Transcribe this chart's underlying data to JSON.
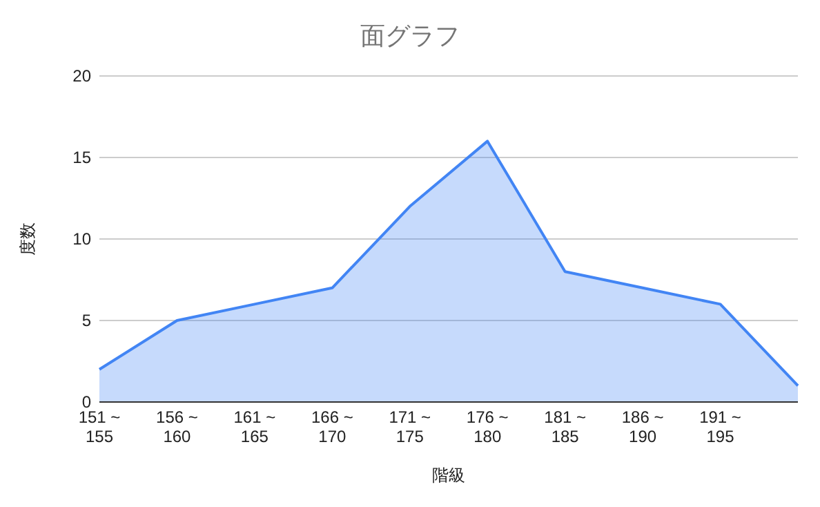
{
  "chart_data": {
    "type": "area",
    "title": "面グラフ",
    "xlabel": "階級",
    "ylabel": "度数",
    "categories": [
      "151 ~ 155",
      "156 ~ 160",
      "161 ~ 165",
      "166 ~ 170",
      "171 ~ 175",
      "176 ~ 180",
      "181 ~ 185",
      "186 ~ 190",
      "191 ~ 195",
      null
    ],
    "series": [
      {
        "color": "#4285f4",
        "values": [
          2,
          5,
          6,
          7,
          12,
          16,
          8,
          7,
          6,
          1
        ]
      }
    ],
    "ylim": [
      0,
      20
    ],
    "yticks": [
      0,
      5,
      10,
      15,
      20
    ],
    "grid": "y"
  }
}
